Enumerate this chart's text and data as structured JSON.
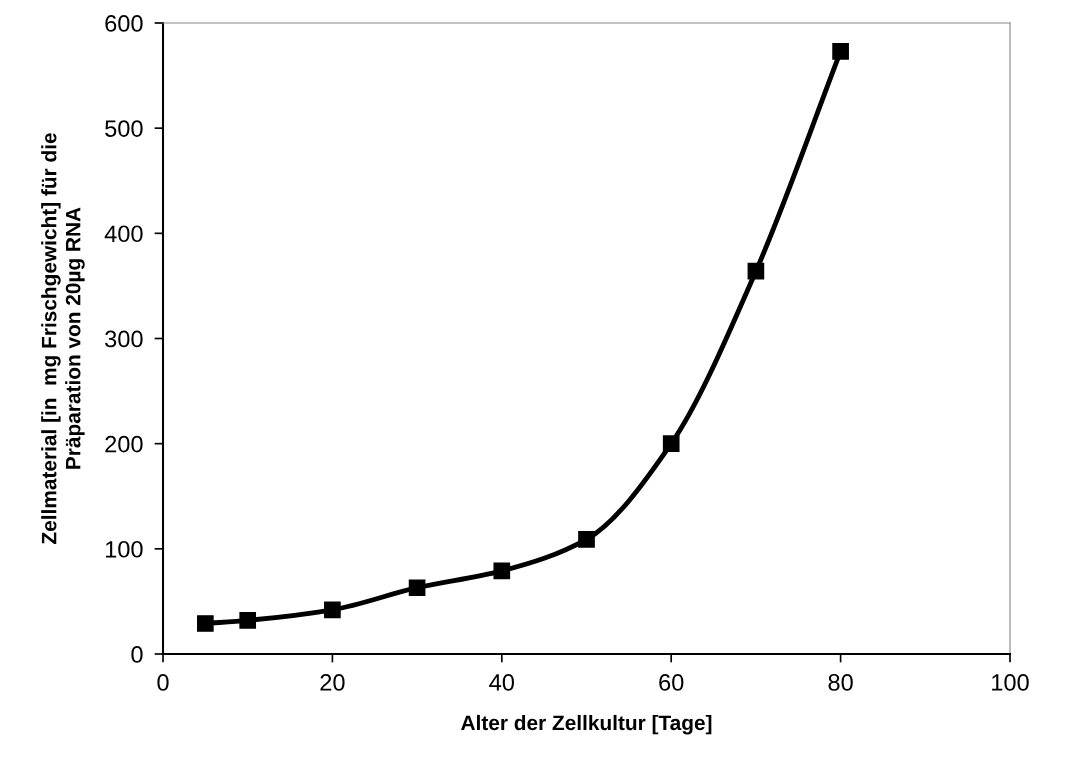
{
  "chart_data": {
    "type": "line",
    "xlabel": "Alter der Zellkultur [Tage]",
    "ylabel": "Zellmaterial [in  mg Frischgewicht] für die\nPräparation von 20µg RNA",
    "x": [
      5,
      10,
      20,
      30,
      40,
      50,
      60,
      70,
      80
    ],
    "series": [
      {
        "color": "#000000",
        "values": [
          29,
          32,
          42,
          63,
          79,
          109,
          200,
          364,
          573
        ]
      }
    ],
    "xlim": [
      0,
      100
    ],
    "xticks": [
      0,
      20,
      40,
      60,
      80,
      100
    ],
    "ylim": [
      0,
      600
    ],
    "yticks": [
      0,
      100,
      200,
      300,
      400,
      500,
      600
    ],
    "marker": "square",
    "line_style": "solid",
    "grid": false,
    "legend": false
  }
}
